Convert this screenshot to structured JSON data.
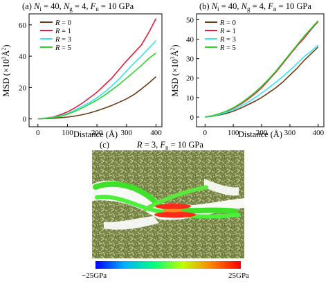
{
  "chart_data": [
    {
      "type": "line",
      "panel": "(a)",
      "title": "(a) N_i = 40, N_g = 4, F_n = 10 GPa",
      "title_parts": {
        "panel": "(a)",
        "ni": "40",
        "ng": "4",
        "fn": "10 GPa"
      },
      "xlabel": "Distance (Å)",
      "ylabel": "MSD (×10³Å²)",
      "xlim": [
        -30,
        420
      ],
      "ylim": [
        -5,
        67
      ],
      "xticks": [
        0,
        100,
        200,
        300,
        400
      ],
      "yticks": [
        0,
        20,
        40,
        60
      ],
      "legend_placement": "top-left",
      "series": [
        {
          "name": "R = 0",
          "label_var": "R",
          "label_val": "0",
          "color": "#6b3a14",
          "x": [
            0,
            25,
            50,
            75,
            100,
            125,
            150,
            175,
            200,
            225,
            250,
            275,
            300,
            325,
            350,
            375,
            400
          ],
          "y": [
            0,
            0.2,
            0.4,
            0.8,
            1.2,
            1.8,
            2.7,
            3.8,
            5.2,
            6.8,
            8.6,
            10.6,
            12.8,
            15.5,
            19.0,
            22.8,
            27.0
          ]
        },
        {
          "name": "R = 1",
          "label_var": "R",
          "label_val": "1",
          "color": "#e8193c",
          "x": [
            0,
            25,
            50,
            75,
            100,
            125,
            150,
            175,
            200,
            225,
            250,
            275,
            300,
            325,
            350,
            375,
            400
          ],
          "y": [
            0,
            0.5,
            1.2,
            2.6,
            4.5,
            7.0,
            10.0,
            13.5,
            17.0,
            21.5,
            26.0,
            31.5,
            37.0,
            42.0,
            47.0,
            55.0,
            64.0
          ]
        },
        {
          "name": "R = 3",
          "label_var": "R",
          "label_val": "3",
          "color": "#33e6f0",
          "x": [
            0,
            25,
            50,
            75,
            100,
            125,
            150,
            175,
            200,
            225,
            250,
            275,
            300,
            325,
            350,
            375,
            400
          ],
          "y": [
            0,
            0.4,
            1.0,
            2.0,
            3.5,
            5.5,
            8.0,
            10.5,
            13.5,
            17.0,
            21.0,
            25.5,
            30.5,
            35.5,
            40.0,
            45.0,
            50.0
          ]
        },
        {
          "name": "R = 5",
          "label_var": "R",
          "label_val": "5",
          "color": "#2bd42b",
          "x": [
            0,
            25,
            50,
            75,
            100,
            125,
            150,
            175,
            200,
            225,
            250,
            275,
            300,
            325,
            350,
            375,
            400
          ],
          "y": [
            0,
            0.3,
            0.8,
            1.6,
            3.0,
            4.8,
            7.0,
            9.5,
            12.0,
            15.0,
            18.5,
            22.0,
            26.0,
            30.0,
            34.0,
            38.5,
            42.0
          ]
        }
      ]
    },
    {
      "type": "line",
      "panel": "(b)",
      "title": "(b) N_i = 40, N_g = 4, F_n = 10 GPa",
      "title_parts": {
        "panel": "(b)",
        "ni": "40",
        "ng": "4",
        "fn": "10 GPa"
      },
      "xlabel": "Distance (Å)",
      "ylabel": "MSD (×10³Å²)",
      "xlim": [
        -30,
        420
      ],
      "ylim": [
        -5,
        53
      ],
      "xticks": [
        0,
        100,
        200,
        300,
        400
      ],
      "yticks": [
        0,
        10,
        20,
        30,
        40,
        50
      ],
      "legend_placement": "top-left",
      "series": [
        {
          "name": "R = 0",
          "label_var": "R",
          "label_val": "0",
          "color": "#6b3a14",
          "x": [
            0,
            25,
            50,
            75,
            100,
            125,
            150,
            175,
            200,
            225,
            250,
            275,
            300,
            325,
            350,
            375,
            400
          ],
          "y": [
            0,
            0.4,
            1.0,
            1.8,
            3.0,
            4.5,
            6.2,
            8.0,
            10.0,
            12.5,
            15.0,
            18.0,
            21.5,
            25.0,
            29.0,
            32.5,
            36.0
          ]
        },
        {
          "name": "R = 1",
          "label_var": "R",
          "label_val": "1",
          "color": "#e8193c",
          "x": [
            0,
            25,
            50,
            75,
            100,
            125,
            150,
            175,
            200,
            225,
            250,
            275,
            300,
            325,
            350,
            375,
            400
          ],
          "y": [
            0,
            0.6,
            1.5,
            2.8,
            4.5,
            6.5,
            9.0,
            11.8,
            15.0,
            19.0,
            23.0,
            27.5,
            32.0,
            36.5,
            40.5,
            45.0,
            49.0
          ]
        },
        {
          "name": "R = 3",
          "label_var": "R",
          "label_val": "3",
          "color": "#33e6f0",
          "x": [
            0,
            25,
            50,
            75,
            100,
            125,
            150,
            175,
            200,
            225,
            250,
            275,
            300,
            325,
            350,
            375,
            400
          ],
          "y": [
            0,
            0.5,
            1.3,
            2.4,
            3.8,
            5.5,
            7.5,
            9.8,
            12.3,
            15.0,
            17.8,
            20.8,
            24.0,
            27.5,
            31.0,
            33.8,
            37.0
          ]
        },
        {
          "name": "R = 5",
          "label_var": "R",
          "label_val": "5",
          "color": "#2bd42b",
          "x": [
            0,
            25,
            50,
            75,
            100,
            125,
            150,
            175,
            200,
            225,
            250,
            275,
            300,
            325,
            350,
            375,
            400
          ],
          "y": [
            0,
            0.7,
            1.7,
            3.0,
            4.8,
            7.0,
            9.6,
            12.5,
            15.8,
            19.5,
            23.5,
            28.0,
            32.5,
            37.0,
            41.5,
            45.5,
            49.5
          ]
        }
      ]
    }
  ],
  "panel_c": {
    "title": "(c)  R = 3, F_n = 10 GPa",
    "title_parts": {
      "panel": "(c)",
      "r": "3",
      "fn": "10 GPa"
    },
    "colorbar": {
      "min_label": "−25GPa",
      "max_label": "25GPa",
      "colors": [
        "#0000ff",
        "#00b0ff",
        "#00ff80",
        "#c0ff00",
        "#ff8000",
        "#ff0000"
      ]
    }
  }
}
